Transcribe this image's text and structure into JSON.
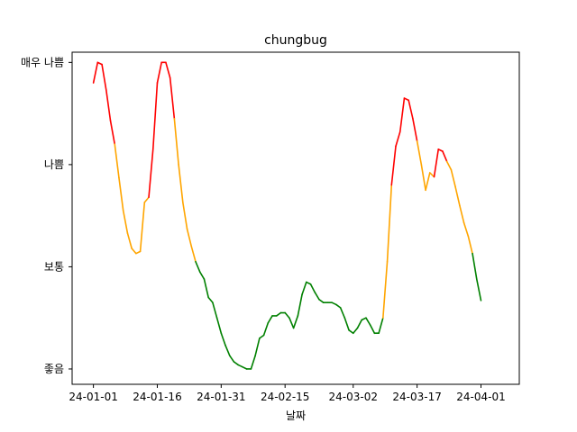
{
  "chart_data": {
    "type": "line",
    "title": "chungbug",
    "xlabel": "날짜",
    "ylabel": "",
    "y_categories": [
      "좋음",
      "보통",
      "나쁨",
      "매우 나쁨"
    ],
    "ylim": [
      -0.15,
      3.1
    ],
    "xlim": [
      "2023-12-27",
      "2024-04-10"
    ],
    "x_ticks": [
      "2024-01-01",
      "2024-01-16",
      "2024-01-31",
      "2024-02-15",
      "2024-03-02",
      "2024-03-17",
      "2024-04-01"
    ],
    "x_tick_labels": [
      "24-01-01",
      "24-01-16",
      "24-01-31",
      "24-02-15",
      "24-03-02",
      "24-03-17",
      "24-04-01"
    ],
    "grid": false,
    "legend": "none",
    "color_rule": {
      "good": "#008000",
      "moderate": "#ffa500",
      "bad": "#ff0000",
      "thresholds": [
        1,
        2
      ]
    },
    "series": [
      {
        "values": [
          [
            "2024-01-01",
            2.8
          ],
          [
            "2024-01-02",
            3.0
          ],
          [
            "2024-01-03",
            2.98
          ],
          [
            "2024-01-04",
            2.73
          ],
          [
            "2024-01-05",
            2.43
          ],
          [
            "2024-01-06",
            2.2
          ],
          [
            "2024-01-07",
            1.87
          ],
          [
            "2024-01-08",
            1.55
          ],
          [
            "2024-01-09",
            1.33
          ],
          [
            "2024-01-10",
            1.18
          ],
          [
            "2024-01-11",
            1.13
          ],
          [
            "2024-01-12",
            1.15
          ],
          [
            "2024-01-13",
            1.63
          ],
          [
            "2024-01-14",
            1.68
          ],
          [
            "2024-01-15",
            2.15
          ],
          [
            "2024-01-16",
            2.8
          ],
          [
            "2024-01-17",
            3.0
          ],
          [
            "2024-01-18",
            3.0
          ],
          [
            "2024-01-19",
            2.85
          ],
          [
            "2024-01-20",
            2.45
          ],
          [
            "2024-01-21",
            2.0
          ],
          [
            "2024-01-22",
            1.63
          ],
          [
            "2024-01-23",
            1.37
          ],
          [
            "2024-01-24",
            1.2
          ],
          [
            "2024-01-25",
            1.05
          ],
          [
            "2024-01-26",
            0.95
          ],
          [
            "2024-01-27",
            0.88
          ],
          [
            "2024-01-28",
            0.7
          ],
          [
            "2024-01-29",
            0.65
          ],
          [
            "2024-01-30",
            0.5
          ],
          [
            "2024-01-31",
            0.35
          ],
          [
            "2024-02-01",
            0.23
          ],
          [
            "2024-02-02",
            0.13
          ],
          [
            "2024-02-03",
            0.07
          ],
          [
            "2024-02-04",
            0.04
          ],
          [
            "2024-02-05",
            0.02
          ],
          [
            "2024-02-06",
            0.0
          ],
          [
            "2024-02-07",
            0.0
          ],
          [
            "2024-02-08",
            0.13
          ],
          [
            "2024-02-09",
            0.3
          ],
          [
            "2024-02-10",
            0.33
          ],
          [
            "2024-02-11",
            0.45
          ],
          [
            "2024-02-12",
            0.52
          ],
          [
            "2024-02-13",
            0.52
          ],
          [
            "2024-02-14",
            0.55
          ],
          [
            "2024-02-15",
            0.55
          ],
          [
            "2024-02-16",
            0.5
          ],
          [
            "2024-02-17",
            0.4
          ],
          [
            "2024-02-18",
            0.52
          ],
          [
            "2024-02-19",
            0.73
          ],
          [
            "2024-02-20",
            0.85
          ],
          [
            "2024-02-21",
            0.83
          ],
          [
            "2024-02-22",
            0.75
          ],
          [
            "2024-02-23",
            0.68
          ],
          [
            "2024-02-24",
            0.65
          ],
          [
            "2024-02-25",
            0.65
          ],
          [
            "2024-02-26",
            0.65
          ],
          [
            "2024-02-27",
            0.63
          ],
          [
            "2024-02-28",
            0.6
          ],
          [
            "2024-02-29",
            0.5
          ],
          [
            "2024-03-01",
            0.38
          ],
          [
            "2024-03-02",
            0.35
          ],
          [
            "2024-03-03",
            0.4
          ],
          [
            "2024-03-04",
            0.48
          ],
          [
            "2024-03-05",
            0.5
          ],
          [
            "2024-03-06",
            0.43
          ],
          [
            "2024-03-07",
            0.35
          ],
          [
            "2024-03-08",
            0.35
          ],
          [
            "2024-03-09",
            0.5
          ],
          [
            "2024-03-10",
            1.05
          ],
          [
            "2024-03-11",
            1.8
          ],
          [
            "2024-03-12",
            2.18
          ],
          [
            "2024-03-13",
            2.32
          ],
          [
            "2024-03-14",
            2.65
          ],
          [
            "2024-03-15",
            2.63
          ],
          [
            "2024-03-16",
            2.45
          ],
          [
            "2024-03-17",
            2.23
          ],
          [
            "2024-03-18",
            2.0
          ],
          [
            "2024-03-19",
            1.75
          ],
          [
            "2024-03-20",
            1.92
          ],
          [
            "2024-03-21",
            1.88
          ],
          [
            "2024-03-22",
            2.15
          ],
          [
            "2024-03-23",
            2.13
          ],
          [
            "2024-03-24",
            2.03
          ],
          [
            "2024-03-25",
            1.95
          ],
          [
            "2024-03-26",
            1.78
          ],
          [
            "2024-03-27",
            1.6
          ],
          [
            "2024-03-28",
            1.43
          ],
          [
            "2024-03-29",
            1.3
          ],
          [
            "2024-03-30",
            1.13
          ],
          [
            "2024-03-31",
            0.88
          ],
          [
            "2024-04-01",
            0.67
          ]
        ]
      }
    ]
  }
}
